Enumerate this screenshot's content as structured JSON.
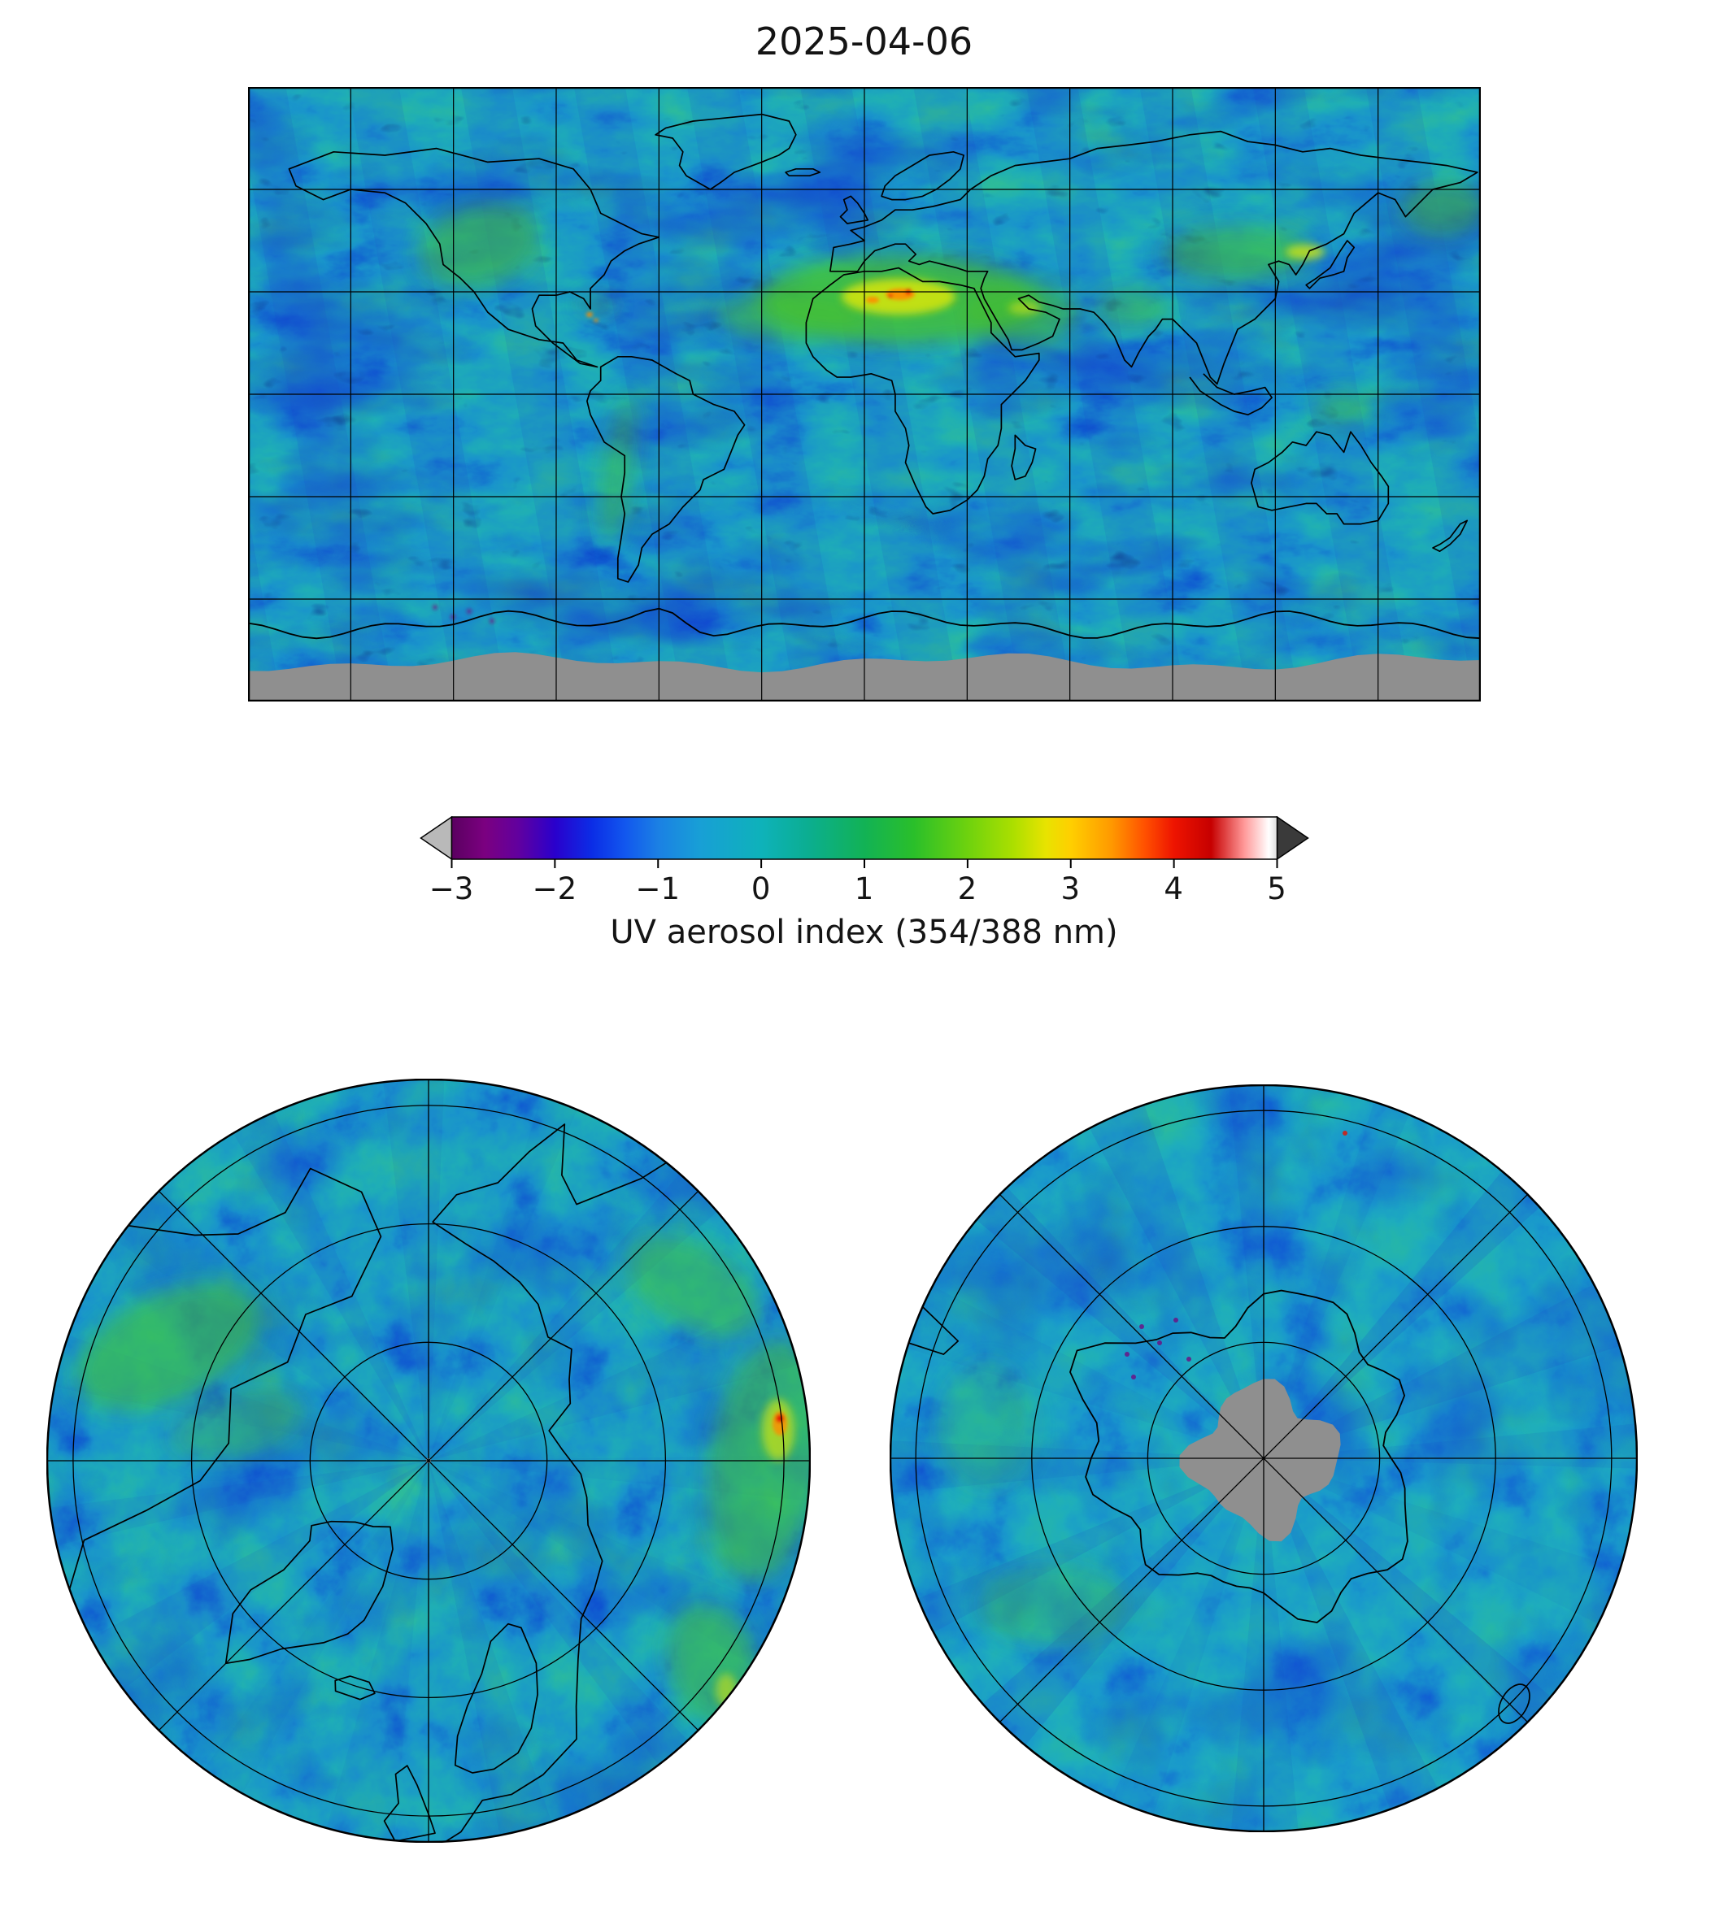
{
  "figure": {
    "title": "2025-04-06",
    "panels": {
      "global": "global equirectangular map",
      "north": "north polar map",
      "south": "south polar map"
    }
  },
  "colorbar": {
    "label": "UV aerosol index (354/388 nm)",
    "ticks": [
      "−3",
      "−2",
      "−1",
      "0",
      "1",
      "2",
      "3",
      "4",
      "5"
    ],
    "under_color": "#b9b9b9",
    "over_color": "#3a3a3a",
    "stops": [
      {
        "p": 0,
        "c": "#5a0060"
      },
      {
        "p": 4,
        "c": "#7b0080"
      },
      {
        "p": 8,
        "c": "#62009e"
      },
      {
        "p": 12.5,
        "c": "#2a00cc"
      },
      {
        "p": 17,
        "c": "#0b2de6"
      },
      {
        "p": 21,
        "c": "#1257ee"
      },
      {
        "p": 25,
        "c": "#1b80e4"
      },
      {
        "p": 30,
        "c": "#189fd6"
      },
      {
        "p": 37.5,
        "c": "#0eb2ba"
      },
      {
        "p": 43,
        "c": "#0bae92"
      },
      {
        "p": 50,
        "c": "#12b255"
      },
      {
        "p": 56,
        "c": "#2abf2a"
      },
      {
        "p": 62.5,
        "c": "#6ed20e"
      },
      {
        "p": 68,
        "c": "#abdf00"
      },
      {
        "p": 72,
        "c": "#e8e300"
      },
      {
        "p": 75,
        "c": "#ffcf00"
      },
      {
        "p": 80,
        "c": "#ff9800"
      },
      {
        "p": 84,
        "c": "#ff5000"
      },
      {
        "p": 87.5,
        "c": "#ee1400"
      },
      {
        "p": 92,
        "c": "#c60000"
      },
      {
        "p": 96,
        "c": "#ff9898"
      },
      {
        "p": 99,
        "c": "#ffffff"
      },
      {
        "p": 100,
        "c": "#dcdcdc"
      }
    ]
  },
  "palette": {
    "background_teal": "#1caec4",
    "swath_blue": "#1c50c8",
    "no_data_gray": "#8f8f8f",
    "high_aerosol_green": "#46c22e",
    "very_high_yellow": "#cfe312",
    "extreme_orange": "#ff8c00",
    "extreme_red": "#e41000",
    "speck_purple": "#6a1486",
    "coastline": "#000000"
  },
  "chart_data": {
    "type": "heatmap",
    "title": "2025-04-06",
    "variable": "UV aerosol index (354/388 nm)",
    "colorbar": {
      "min": -3,
      "max": 5,
      "ticks": [
        -3,
        -2,
        -1,
        0,
        1,
        2,
        3,
        4,
        5
      ],
      "extend_below": true,
      "extend_above": true
    },
    "panels": [
      {
        "id": "global",
        "projection": "equirectangular",
        "lon_range": [
          -180,
          180
        ],
        "lat_range": [
          -90,
          90
        ],
        "gridline_spacing_deg": 30,
        "missing_data": "gray band over high southern latitudes"
      },
      {
        "id": "north-polar",
        "projection": "north polar azimuthal",
        "gridlines": {
          "parallel_circles": 3,
          "meridians_every_deg": 45
        }
      },
      {
        "id": "south-polar",
        "projection": "south polar azimuthal",
        "gridlines": {
          "parallel_circles": 3,
          "meridians_every_deg": 45
        },
        "missing_data": "gray disk over the pole"
      }
    ],
    "observed_features": [
      {
        "region": "North Africa / Sahara and adjacent Atlantic",
        "value": "high, about 2 to 4 (yellow-orange with small red core)"
      },
      {
        "region": "Arabian Peninsula / Middle East",
        "value": "elevated, about 1 to 2.5"
      },
      {
        "region": "East Asia / Gobi dust region",
        "value": "elevated, about 1.5 to 3"
      },
      {
        "region": "Western North America",
        "value": "slightly elevated, about 1 to 1.5"
      },
      {
        "region": "Oceans background",
        "value": "about -0.5 to 0.5 (cyan-teal) with blue orbital swaths near -1"
      }
    ]
  }
}
